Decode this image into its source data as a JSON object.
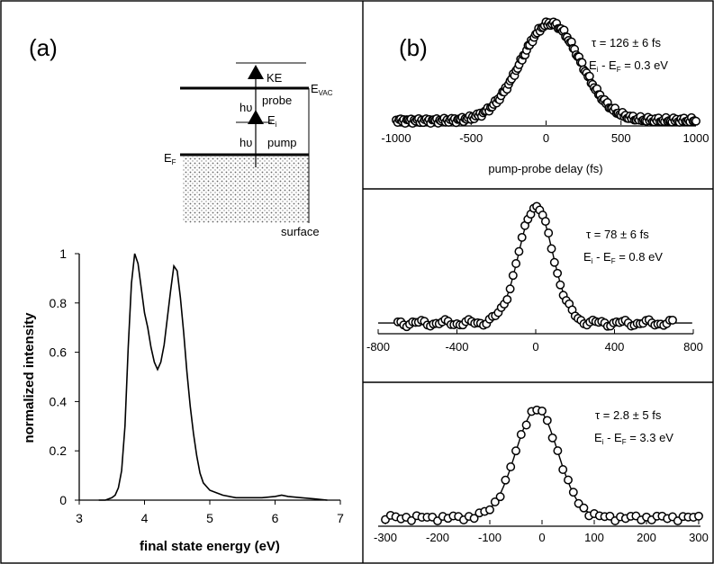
{
  "chart_data": [
    {
      "id": "a",
      "type": "line",
      "panel_label": "(a)",
      "xlabel": "final state energy (eV)",
      "ylabel": "normalized intensity",
      "xlim": [
        3,
        7
      ],
      "ylim": [
        0,
        1
      ],
      "x_ticks": [
        "3",
        "4",
        "5",
        "6",
        "7"
      ],
      "y_ticks": [
        "0",
        "0.2",
        "0.4",
        "0.6",
        "0.8",
        "1"
      ],
      "series": [
        {
          "x": [
            3.3,
            3.4,
            3.5,
            3.55,
            3.6,
            3.65,
            3.7,
            3.75,
            3.8,
            3.85,
            3.9,
            3.95,
            4.0,
            4.05,
            4.1,
            4.15,
            4.2,
            4.25,
            4.3,
            4.35,
            4.4,
            4.45,
            4.5,
            4.55,
            4.6,
            4.65,
            4.7,
            4.75,
            4.8,
            4.85,
            4.9,
            5.0,
            5.1,
            5.2,
            5.4,
            5.6,
            5.8,
            6.0,
            6.1,
            6.2,
            6.4,
            6.6,
            6.8
          ],
          "y": [
            0,
            0,
            0.01,
            0.02,
            0.05,
            0.12,
            0.3,
            0.62,
            0.88,
            1.0,
            0.96,
            0.86,
            0.76,
            0.7,
            0.62,
            0.56,
            0.53,
            0.56,
            0.63,
            0.74,
            0.85,
            0.95,
            0.93,
            0.82,
            0.68,
            0.52,
            0.38,
            0.27,
            0.18,
            0.11,
            0.07,
            0.04,
            0.03,
            0.02,
            0.01,
            0.01,
            0.01,
            0.015,
            0.02,
            0.015,
            0.01,
            0.005,
            0
          ]
        }
      ],
      "inset": {
        "labels": {
          "ke": "KE",
          "probe": "probe",
          "evac": "E",
          "evac_sub": "VAC",
          "hv_probe": "hυ",
          "ei": "E",
          "ei_sub": "i",
          "hv_pump": "hυ",
          "pump": "pump",
          "ef": "E",
          "ef_sub": "F",
          "surface": "surface"
        }
      }
    },
    {
      "id": "b1",
      "type": "scatter",
      "panel_label": "(b)",
      "xlabel": "pump-probe delay (fs)",
      "xlim": [
        -1000,
        1000
      ],
      "x_ticks": [
        "-1000",
        "-500",
        "0",
        "500",
        "1000"
      ],
      "annotation_tau": "τ = 126 ± 6 fs",
      "annotation_energy_prefix": "E",
      "annotation_energy_sub1": "i",
      "annotation_energy_mid": " - E",
      "annotation_energy_sub2": "F",
      "annotation_energy_value": " = 0.3 eV",
      "fit": {
        "center": 30,
        "fwhm": 470,
        "baseline": 0.0,
        "amplitude": 1.0
      },
      "points": {
        "x_start": -1000,
        "x_end": 1000,
        "step": 10
      }
    },
    {
      "id": "b2",
      "type": "scatter",
      "xlim": [
        -800,
        800
      ],
      "x_ticks": [
        "-800",
        "-400",
        "0",
        "400",
        "800"
      ],
      "annotation_tau": "τ = 78 ± 6 fs",
      "annotation_energy_prefix": "E",
      "annotation_energy_sub1": "i",
      "annotation_energy_mid": " - E",
      "annotation_energy_sub2": "F",
      "annotation_energy_value": " = 0.8 eV",
      "fit": {
        "center": 0,
        "fwhm": 200,
        "baseline": 0.05,
        "amplitude": 0.95
      },
      "points": {
        "x_start": -700,
        "x_end": 700,
        "step": 15
      }
    },
    {
      "id": "b3",
      "type": "scatter",
      "xlim": [
        -300,
        300
      ],
      "x_ticks": [
        "-300",
        "-200",
        "-100",
        "0",
        "100",
        "200",
        "300"
      ],
      "annotation_tau": "τ = 2.8 ± 5 fs",
      "annotation_energy_prefix": "E",
      "annotation_energy_sub1": "i",
      "annotation_energy_mid": " - E",
      "annotation_energy_sub2": "F",
      "annotation_energy_value": " = 3.3 eV",
      "fit": {
        "center": -10,
        "fwhm": 95,
        "baseline": 0.02,
        "amplitude": 0.98
      },
      "points": {
        "x_start": -300,
        "x_end": 300,
        "step": 10
      }
    }
  ]
}
